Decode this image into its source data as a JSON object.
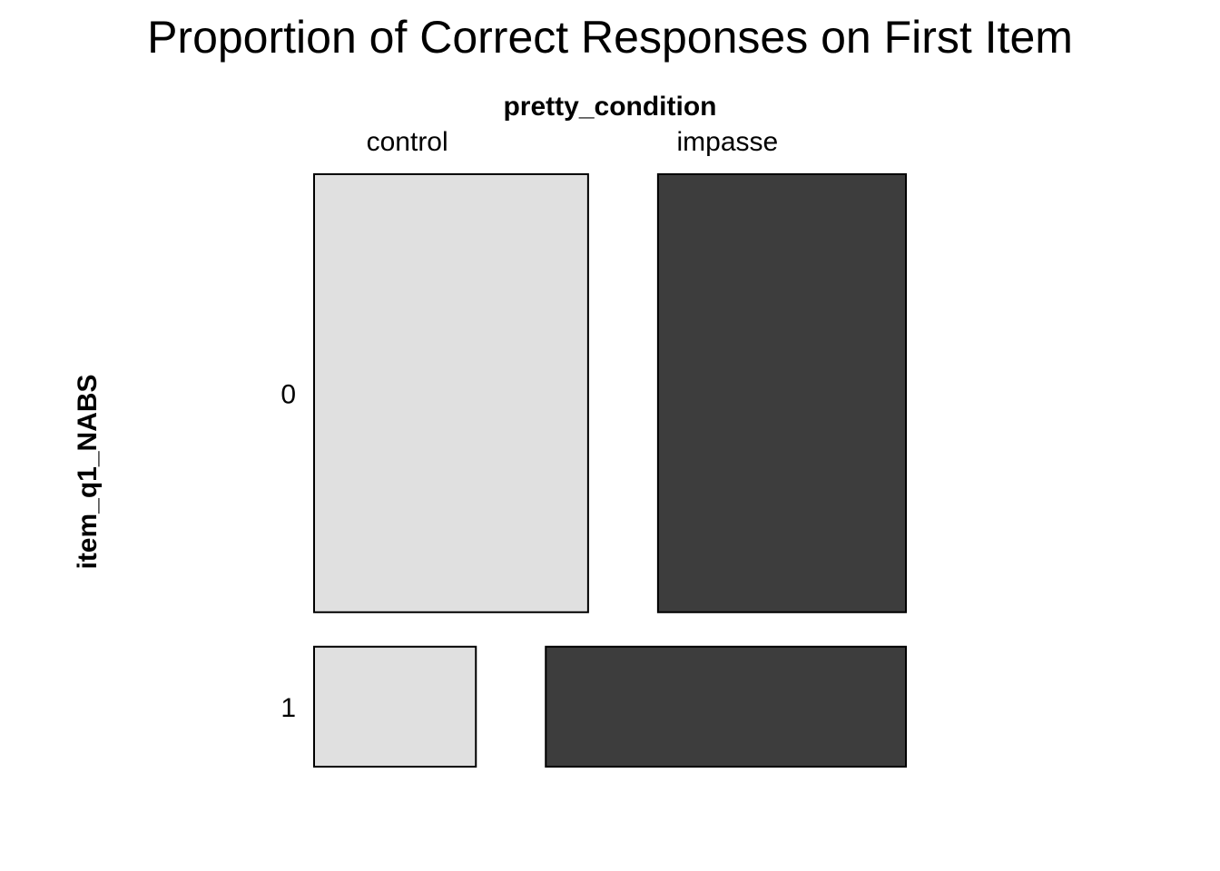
{
  "chart_data": {
    "type": "mosaic",
    "title": "Proportion of Correct Responses on First Item",
    "x_variable": "pretty_condition",
    "y_variable": "item_q1_NABS",
    "row_levels": [
      "0",
      "1"
    ],
    "row_proportions": [
      0.785,
      0.215
    ],
    "cells": [
      {
        "row": "0",
        "column": "control",
        "proportion_within_row": 0.525
      },
      {
        "row": "0",
        "column": "impasse",
        "proportion_within_row": 0.475
      },
      {
        "row": "1",
        "column": "control",
        "proportion_within_row": 0.31
      },
      {
        "row": "1",
        "column": "impasse",
        "proportion_within_row": 0.69
      }
    ],
    "column_levels": [
      "control",
      "impasse"
    ],
    "colors": {
      "control": "#e0e0e0",
      "impasse": "#3d3d3d",
      "outline": "#000000"
    }
  }
}
